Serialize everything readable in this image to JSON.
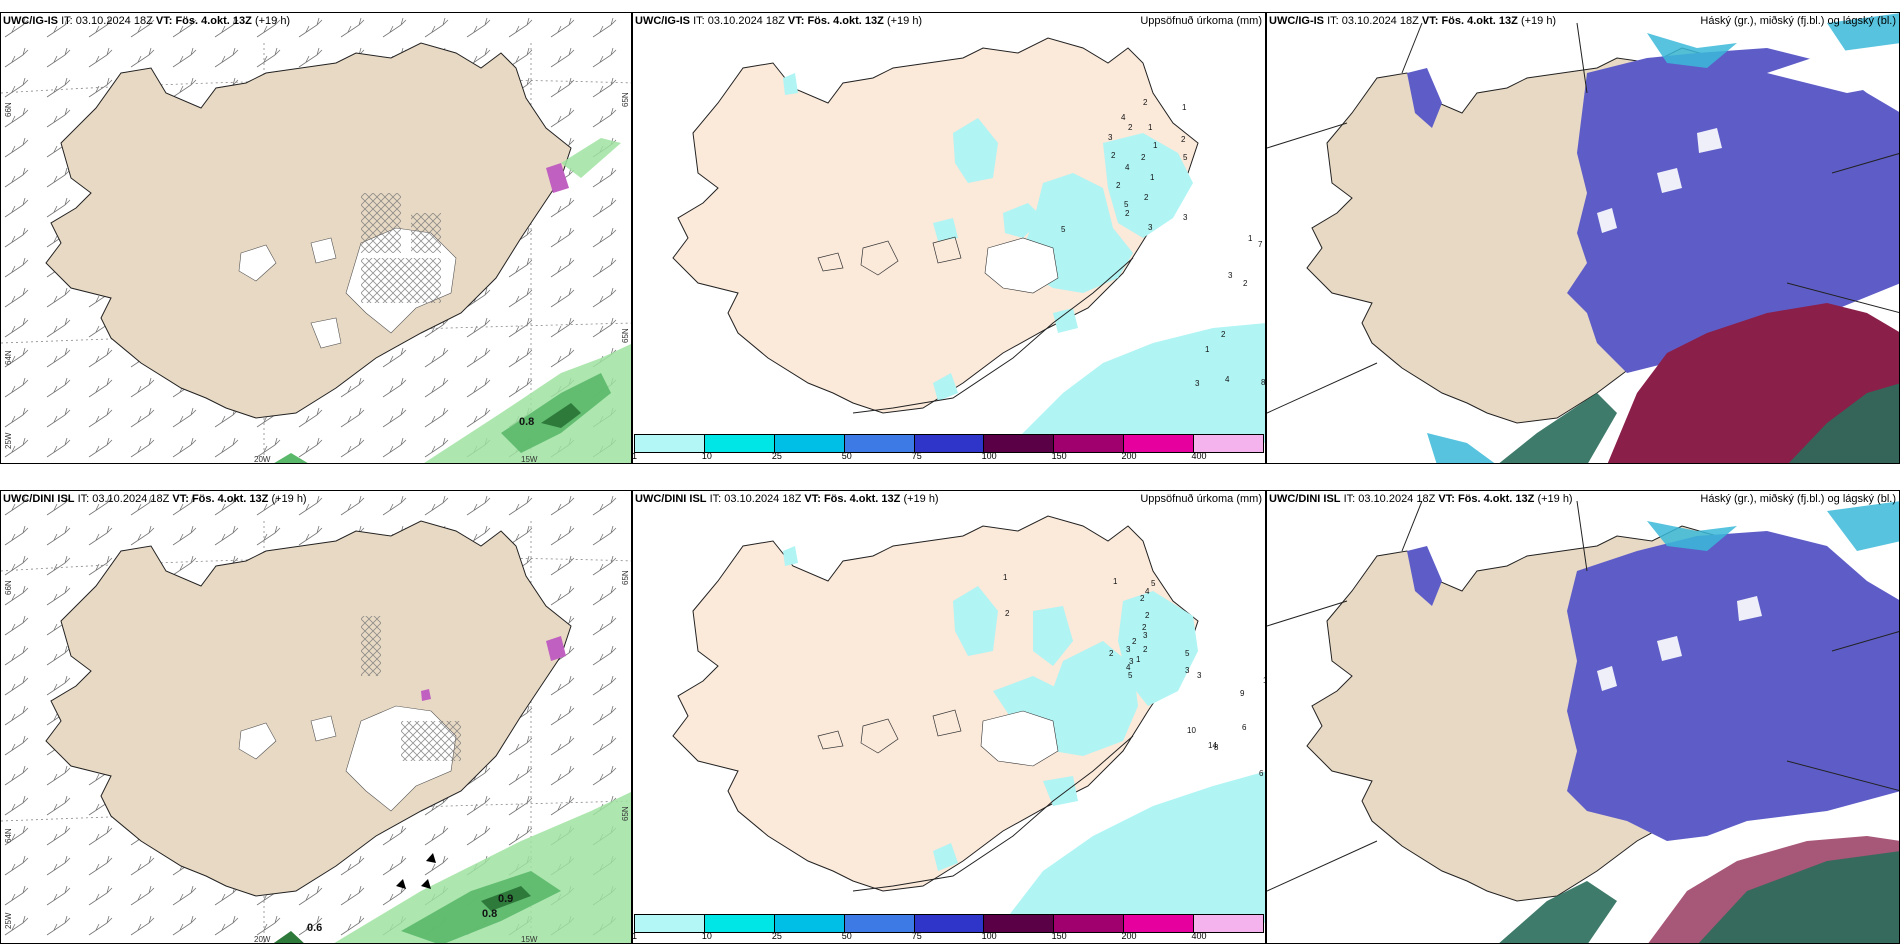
{
  "colors": {
    "land": "#e8d9c4",
    "land_light": "#fbe9da",
    "precip": "#b0f4f4",
    "cloud_high": "#5e5dc8",
    "cloud_mid": "#8a1f4a",
    "cloud_low": "#2a6d5a",
    "green": "#9fe3a1",
    "green_dark": "#2e7a3b"
  },
  "row1": {
    "wind": {
      "model": "UWC/IG-IS",
      "it_label": "IT:",
      "it_value": "03.10.2024 18Z",
      "vt_label": "VT:",
      "vt_value": "Fös. 4.okt. 13Z",
      "lead": "(+19 h)",
      "lat_labels": [
        "66N",
        "64N",
        "65N",
        "65N"
      ],
      "lon_labels": [
        "20W",
        "15W",
        "25W"
      ],
      "values": [
        "0.8"
      ]
    },
    "precip": {
      "model": "UWC/IG-IS",
      "it_label": "IT:",
      "it_value": "03.10.2024 18Z",
      "vt_label": "VT:",
      "vt_value": "Fös. 4.okt. 13Z",
      "lead": "(+19 h)",
      "field_title": "Uppsöfnuð úrkoma (mm)"
    },
    "cloud": {
      "model": "UWC/IG-IS",
      "it_label": "IT:",
      "it_value": "03.10.2024 18Z",
      "vt_label": "VT:",
      "vt_value": "Fös. 4.okt. 13Z",
      "lead": "(+19 h)",
      "field_title": "Háský (gr.), miðský (fj.bl.) og lágský (bl.)"
    }
  },
  "row2": {
    "wind": {
      "model": "UWC/DINI ISL",
      "it_label": "IT:",
      "it_value": "03.10.2024 18Z",
      "vt_label": "VT:",
      "vt_value": "Fös. 4.okt. 13Z",
      "lead": "(+19 h)",
      "lat_labels": [
        "66N",
        "64N",
        "65N",
        "65N"
      ],
      "lon_labels": [
        "20W",
        "15W",
        "25W"
      ],
      "values": [
        "0.6",
        "0.9",
        "0.8"
      ]
    },
    "precip": {
      "model": "UWC/DINI ISL",
      "it_label": "IT:",
      "it_value": "03.10.2024 18Z",
      "vt_label": "VT:",
      "vt_value": "Fös. 4.okt. 13Z",
      "lead": "(+19 h)",
      "field_title": "Uppsöfnuð úrkoma (mm)"
    },
    "cloud": {
      "model": "UWC/DINI ISL",
      "it_label": "IT:",
      "it_value": "03.10.2024 18Z",
      "vt_label": "VT:",
      "vt_value": "Fös. 4.okt. 13Z",
      "lead": "(+19 h)",
      "field_title": "Háský (gr.), miðský (fj.bl.) og lágský (bl.)"
    }
  },
  "colorbar": {
    "ticks": [
      "1",
      "10",
      "25",
      "50",
      "75",
      "100",
      "150",
      "200",
      "400"
    ],
    "colors": [
      "#b3f7f7",
      "#00e6e6",
      "#00bfe6",
      "#3d7ae6",
      "#2f35c8",
      "#5a0046",
      "#a0006e",
      "#e6009e",
      "#f5b3ee"
    ]
  },
  "precip_numbers_row1": [
    "2",
    "1",
    "4",
    "3",
    "2",
    "2",
    "1",
    "2",
    "5",
    "2",
    "1",
    "1",
    "2",
    "2",
    "5",
    "3",
    "2",
    "5",
    "3",
    "4",
    "11",
    "13",
    "8",
    "2",
    "2",
    "3",
    "3",
    "5",
    "3",
    "9",
    "12",
    "9",
    "1",
    "2",
    "3",
    "7",
    "7",
    "6",
    "5",
    "9",
    "10",
    "9",
    "8",
    "2",
    "6",
    "3",
    "1",
    "4",
    "3",
    "2",
    "8",
    "8",
    "3",
    "2"
  ],
  "precip_numbers_row2": [
    "1",
    "2",
    "1",
    "5",
    "4",
    "2",
    "2",
    "2",
    "3",
    "2",
    "2",
    "3",
    "2",
    "3",
    "4",
    "5",
    "1",
    "5",
    "3",
    "3",
    "14",
    "10",
    "12",
    "13",
    "11",
    "9",
    "1",
    "2",
    "7",
    "8",
    "3",
    "4",
    "10",
    "14",
    "8",
    "6",
    "5",
    "10",
    "2",
    "1",
    "8",
    "3",
    "6",
    "3",
    "6",
    "3",
    "2"
  ]
}
